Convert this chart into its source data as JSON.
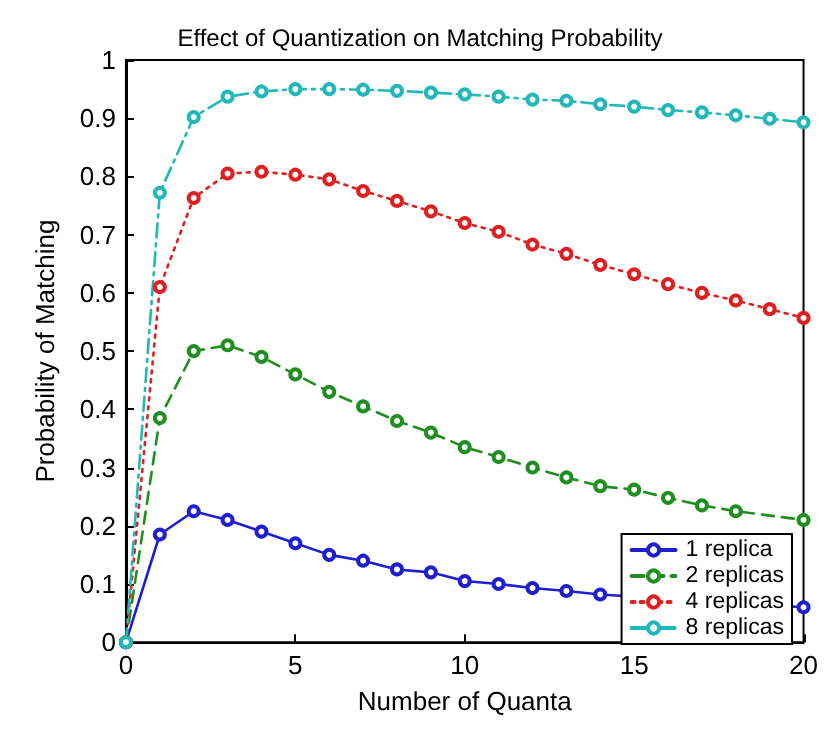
{
  "chart_data": {
    "type": "line",
    "title": "Effect of Quantization on Matching Probability",
    "xlabel": "Number of Quanta",
    "ylabel": "Probability of Matching",
    "x": [
      0,
      1,
      2,
      3,
      4,
      5,
      6,
      7,
      8,
      9,
      10,
      11,
      12,
      13,
      14,
      15,
      16,
      17,
      18,
      19,
      20
    ],
    "series": [
      {
        "name": "1 replica",
        "color": "#1f1fd0",
        "line_style": "solid",
        "values": [
          0,
          0.185,
          0.225,
          0.21,
          0.19,
          0.17,
          0.15,
          0.14,
          0.125,
          0.12,
          0.105,
          0.1,
          0.093,
          0.088,
          0.082,
          null,
          null,
          null,
          null,
          null,
          0.06
        ]
      },
      {
        "name": "2 replicas",
        "color": "#1f8f1f",
        "line_style": "dashed",
        "values": [
          0,
          0.385,
          0.5,
          0.51,
          0.49,
          0.46,
          0.43,
          0.405,
          0.38,
          0.36,
          0.335,
          0.318,
          0.3,
          0.283,
          0.268,
          0.262,
          0.248,
          0.235,
          0.225,
          null,
          0.21
        ]
      },
      {
        "name": "4 replicas",
        "color": "#e02020",
        "line_style": "dotted",
        "values": [
          0,
          0.61,
          0.763,
          0.805,
          0.808,
          0.803,
          0.795,
          0.775,
          0.758,
          0.74,
          0.72,
          0.705,
          0.683,
          0.667,
          0.648,
          0.632,
          0.615,
          0.6,
          0.587,
          0.572,
          0.557
        ]
      },
      {
        "name": "8 replicas",
        "color": "#20b8b8",
        "line_style": "dashdot",
        "values": [
          0,
          0.772,
          0.902,
          0.937,
          0.946,
          0.95,
          0.95,
          0.949,
          0.947,
          0.944,
          0.941,
          0.937,
          0.932,
          0.93,
          0.924,
          0.92,
          0.914,
          0.91,
          0.905,
          0.899,
          0.893
        ]
      }
    ],
    "xlim": [
      0,
      20
    ],
    "xticks": [
      0,
      5,
      10,
      15,
      20
    ],
    "ylim": [
      0,
      1
    ],
    "yticks": [
      0,
      0.1,
      0.2,
      0.3,
      0.4,
      0.5,
      0.6,
      0.7,
      0.8,
      0.9,
      1
    ],
    "grid": false,
    "legend": "bottom right",
    "marker": "circle"
  }
}
